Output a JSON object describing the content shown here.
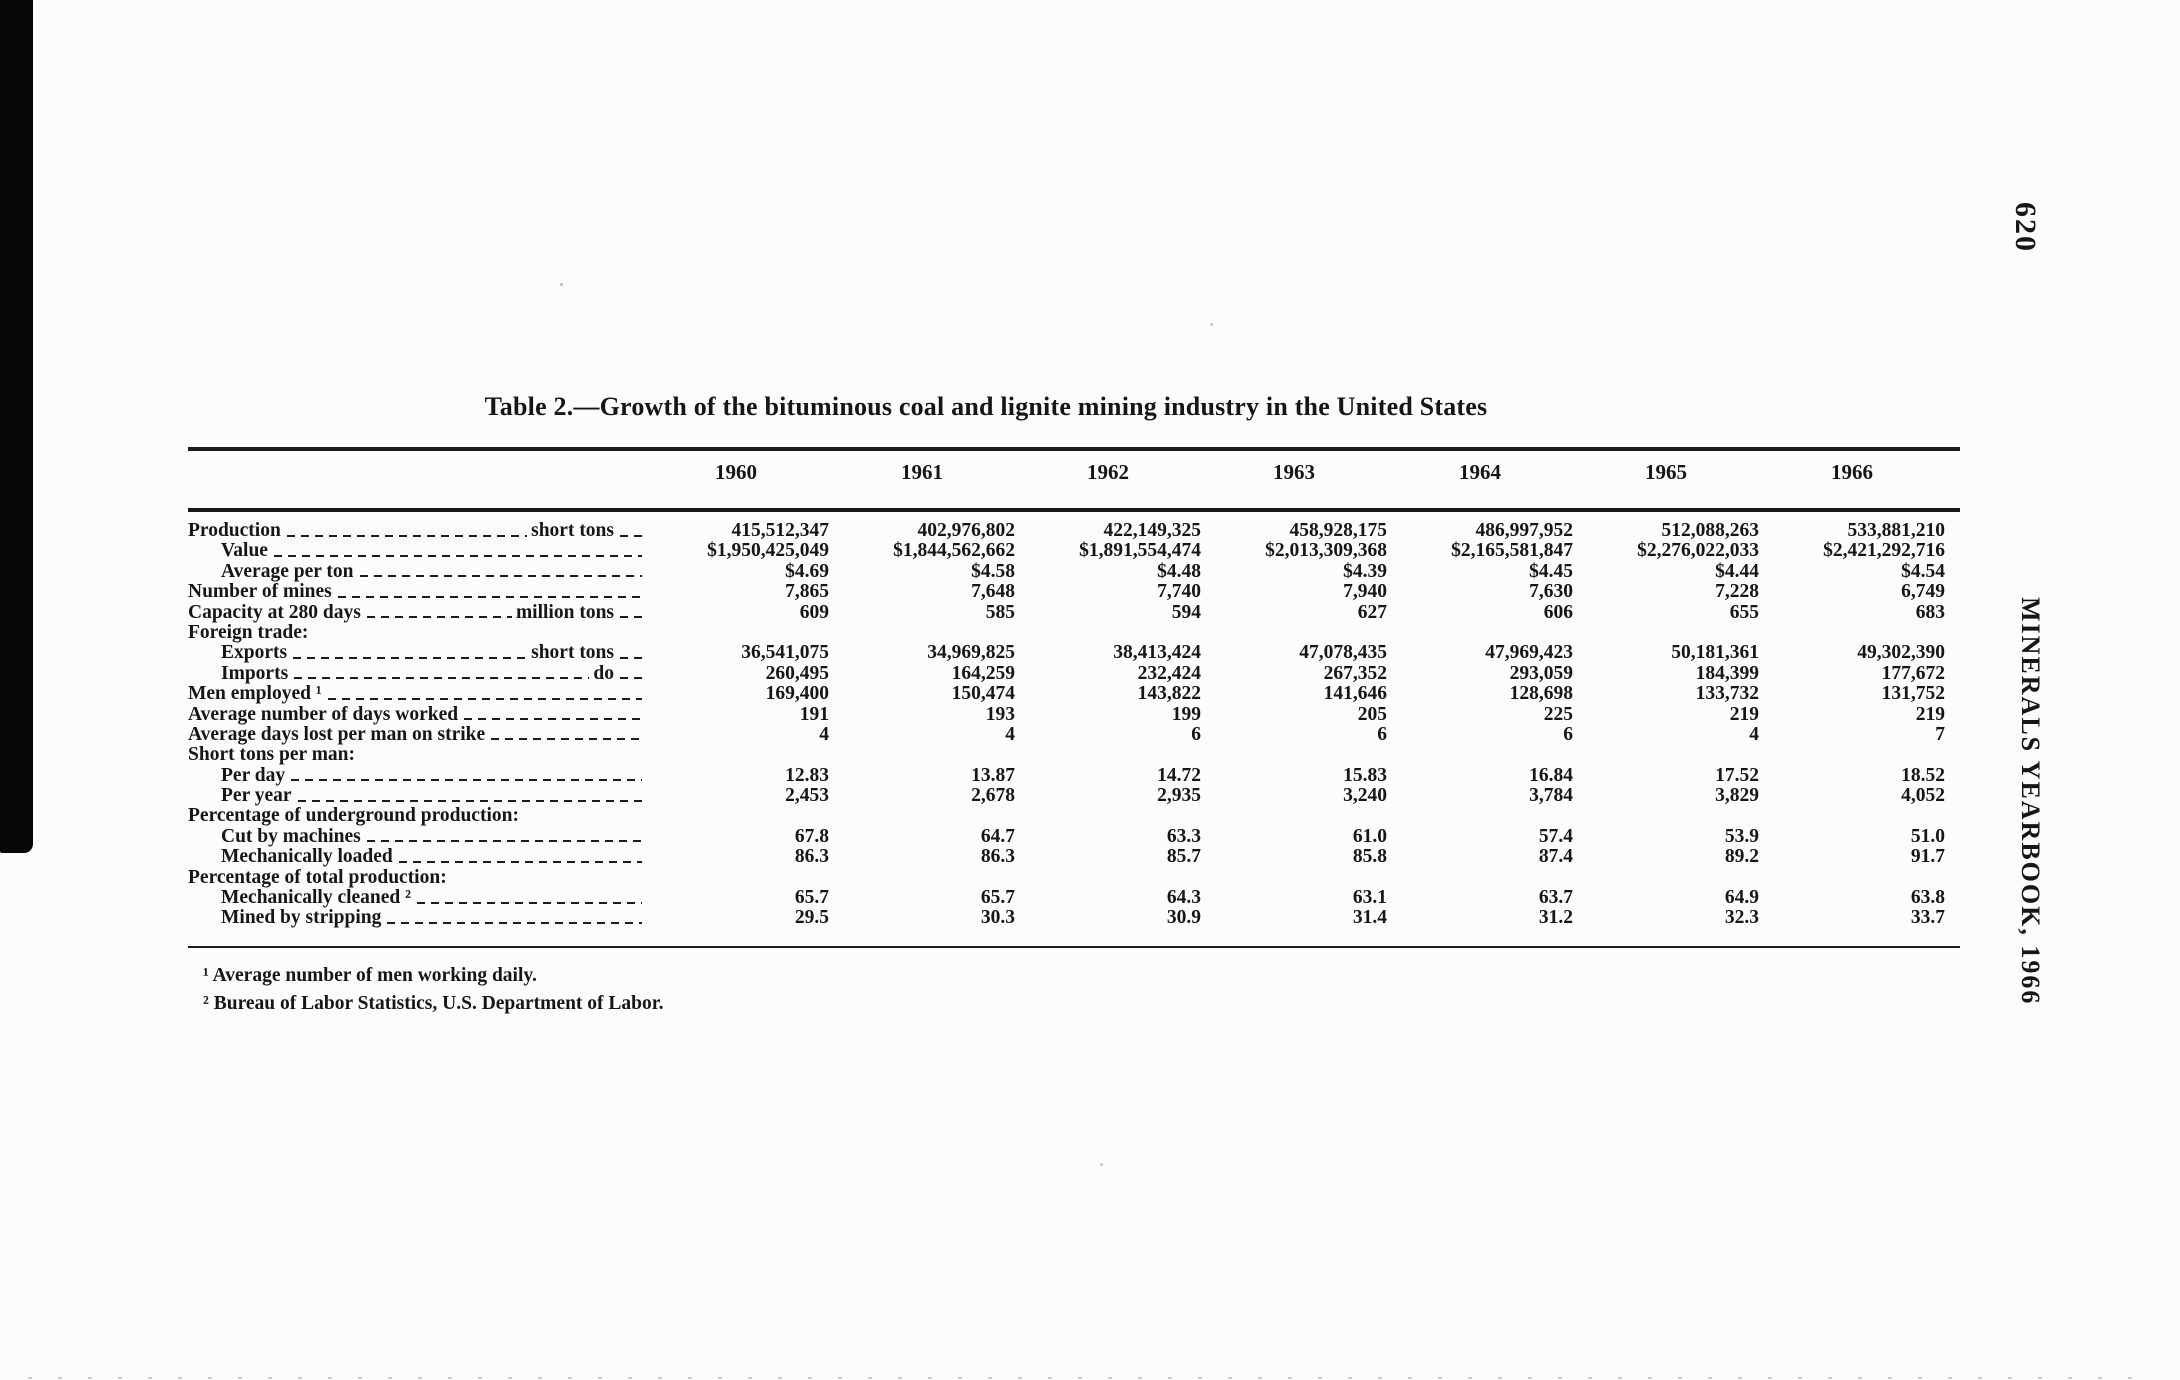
{
  "page": {
    "number": "620",
    "running_head": "MINERALS YEARBOOK, 1966"
  },
  "table": {
    "title": "Table 2.—Growth of the bituminous coal and lignite mining industry in the United States",
    "years": [
      "1960",
      "1961",
      "1962",
      "1963",
      "1964",
      "1965",
      "1966"
    ],
    "rows": [
      {
        "label": "Production",
        "unit": "short tons",
        "indent": 0,
        "type": "data",
        "values": [
          "415,512,347",
          "402,976,802",
          "422,149,325",
          "458,928,175",
          "486,997,952",
          "512,088,263",
          "533,881,210"
        ]
      },
      {
        "label": "Value",
        "unit": "",
        "indent": 1,
        "type": "data",
        "values": [
          "$1,950,425,049",
          "$1,844,562,662",
          "$1,891,554,474",
          "$2,013,309,368",
          "$2,165,581,847",
          "$2,276,022,033",
          "$2,421,292,716"
        ]
      },
      {
        "label": "Average per ton",
        "unit": "",
        "indent": 1,
        "type": "data",
        "values": [
          "$4.69",
          "$4.58",
          "$4.48",
          "$4.39",
          "$4.45",
          "$4.44",
          "$4.54"
        ]
      },
      {
        "label": "Number of mines",
        "unit": "",
        "indent": 0,
        "type": "data",
        "values": [
          "7,865",
          "7,648",
          "7,740",
          "7,940",
          "7,630",
          "7,228",
          "6,749"
        ]
      },
      {
        "label": "Capacity at 280 days",
        "unit": "million tons",
        "indent": 0,
        "type": "data",
        "values": [
          "609",
          "585",
          "594",
          "627",
          "606",
          "655",
          "683"
        ]
      },
      {
        "label": "Foreign trade:",
        "unit": "",
        "indent": 0,
        "type": "section",
        "values": [
          "",
          "",
          "",
          "",
          "",
          "",
          ""
        ]
      },
      {
        "label": "Exports",
        "unit": "short tons",
        "indent": 1,
        "type": "data",
        "values": [
          "36,541,075",
          "34,969,825",
          "38,413,424",
          "47,078,435",
          "47,969,423",
          "50,181,361",
          "49,302,390"
        ]
      },
      {
        "label": "Imports",
        "unit": "do",
        "indent": 1,
        "type": "data",
        "values": [
          "260,495",
          "164,259",
          "232,424",
          "267,352",
          "293,059",
          "184,399",
          "177,672"
        ]
      },
      {
        "label": "Men employed ¹",
        "unit": "",
        "indent": 0,
        "type": "data",
        "values": [
          "169,400",
          "150,474",
          "143,822",
          "141,646",
          "128,698",
          "133,732",
          "131,752"
        ]
      },
      {
        "label": "Average number of days worked",
        "unit": "",
        "indent": 0,
        "type": "data",
        "values": [
          "191",
          "193",
          "199",
          "205",
          "225",
          "219",
          "219"
        ]
      },
      {
        "label": "Average days lost per man on strike",
        "unit": "",
        "indent": 0,
        "type": "data",
        "values": [
          "4",
          "4",
          "6",
          "6",
          "6",
          "4",
          "7"
        ]
      },
      {
        "label": "Short tons per man:",
        "unit": "",
        "indent": 0,
        "type": "section",
        "values": [
          "",
          "",
          "",
          "",
          "",
          "",
          ""
        ]
      },
      {
        "label": "Per day",
        "unit": "",
        "indent": 1,
        "type": "data",
        "values": [
          "12.83",
          "13.87",
          "14.72",
          "15.83",
          "16.84",
          "17.52",
          "18.52"
        ]
      },
      {
        "label": "Per year",
        "unit": "",
        "indent": 1,
        "type": "data",
        "values": [
          "2,453",
          "2,678",
          "2,935",
          "3,240",
          "3,784",
          "3,829",
          "4,052"
        ]
      },
      {
        "label": "Percentage of underground production:",
        "unit": "",
        "indent": 0,
        "type": "section",
        "values": [
          "",
          "",
          "",
          "",
          "",
          "",
          ""
        ]
      },
      {
        "label": "Cut by machines",
        "unit": "",
        "indent": 1,
        "type": "data",
        "values": [
          "67.8",
          "64.7",
          "63.3",
          "61.0",
          "57.4",
          "53.9",
          "51.0"
        ]
      },
      {
        "label": "Mechanically loaded",
        "unit": "",
        "indent": 1,
        "type": "data",
        "values": [
          "86.3",
          "86.3",
          "85.7",
          "85.8",
          "87.4",
          "89.2",
          "91.7"
        ]
      },
      {
        "label": "Percentage of total production:",
        "unit": "",
        "indent": 0,
        "type": "section",
        "values": [
          "",
          "",
          "",
          "",
          "",
          "",
          ""
        ]
      },
      {
        "label": "Mechanically cleaned ²",
        "unit": "",
        "indent": 1,
        "type": "data",
        "values": [
          "65.7",
          "65.7",
          "64.3",
          "63.1",
          "63.7",
          "64.9",
          "63.8"
        ]
      },
      {
        "label": "Mined by stripping",
        "unit": "",
        "indent": 1,
        "type": "data",
        "values": [
          "29.5",
          "30.3",
          "30.9",
          "31.4",
          "31.2",
          "32.3",
          "33.7"
        ]
      }
    ],
    "footnotes": [
      "¹ Average number of men working daily.",
      "² Bureau of Labor Statistics, U.S. Department of Labor."
    ]
  }
}
